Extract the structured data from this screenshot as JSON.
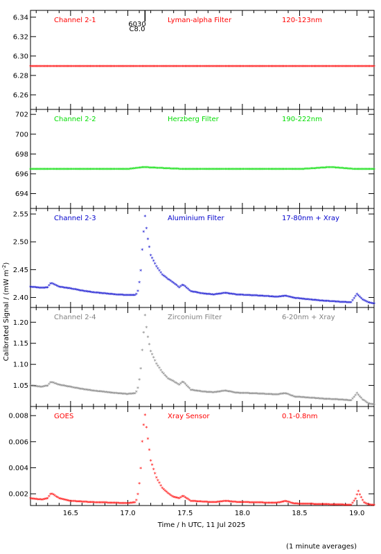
{
  "figure": {
    "ylabel": "Calibrated Signal / (mW m",
    "ylabel_sup": "-2",
    "ylabel_end": ")",
    "xlabel": "Time / h UTC, 11 Jul 2025",
    "footnote": "(1 minute averages)",
    "marker_label_top": "6030",
    "marker_label_bottom": "C8.0"
  },
  "chart_data": [
    {
      "type": "scatter",
      "channel": "Channel 2-1",
      "filter": "Lyman-alpha Filter",
      "band": "120-123nm",
      "color": "#ff0000",
      "xlim": [
        16.15,
        19.15
      ],
      "ylim": [
        6.245,
        6.347
      ],
      "yticks": [
        "6.26",
        "6.28",
        "6.30",
        "6.32",
        "6.34"
      ],
      "x": [
        16.15,
        16.5,
        17.0,
        17.5,
        18.0,
        18.5,
        19.0,
        19.15
      ],
      "y": [
        6.289,
        6.289,
        6.289,
        6.289,
        6.289,
        6.289,
        6.289,
        6.289
      ]
    },
    {
      "type": "scatter",
      "channel": "Channel 2-2",
      "filter": "Herzberg Filter",
      "band": "190-222nm",
      "color": "#00dd00",
      "xlim": [
        16.15,
        19.15
      ],
      "ylim": [
        692.5,
        702.5
      ],
      "yticks": [
        "694",
        "696",
        "698",
        "700",
        "702"
      ],
      "x": [
        16.15,
        16.5,
        17.0,
        17.13,
        17.5,
        18.0,
        18.5,
        18.77,
        19.0,
        19.15
      ],
      "y": [
        696.4,
        696.4,
        696.4,
        696.6,
        696.4,
        696.4,
        696.4,
        696.6,
        696.4,
        696.4
      ]
    },
    {
      "type": "scatter",
      "channel": "Channel 2-3",
      "filter": "Aluminium Filter",
      "band": "17-80nm + Xray",
      "color": "#0000cc",
      "xlim": [
        16.15,
        19.15
      ],
      "ylim": [
        2.382,
        2.56
      ],
      "yticks": [
        "2.40",
        "2.45",
        "2.50",
        "2.55"
      ],
      "x": [
        16.15,
        16.25,
        16.3,
        16.33,
        16.4,
        16.5,
        16.6,
        16.7,
        16.8,
        16.9,
        17.0,
        17.07,
        17.09,
        17.11,
        17.13,
        17.15,
        17.17,
        17.2,
        17.25,
        17.3,
        17.35,
        17.4,
        17.45,
        17.48,
        17.55,
        17.65,
        17.75,
        17.85,
        17.95,
        18.05,
        18.15,
        18.3,
        18.38,
        18.45,
        18.55,
        18.7,
        18.85,
        18.95,
        19.0,
        19.05,
        19.1,
        19.15
      ],
      "y": [
        2.418,
        2.416,
        2.417,
        2.425,
        2.418,
        2.415,
        2.411,
        2.408,
        2.406,
        2.404,
        2.403,
        2.403,
        2.412,
        2.44,
        2.5,
        2.545,
        2.51,
        2.475,
        2.455,
        2.44,
        2.432,
        2.425,
        2.417,
        2.422,
        2.41,
        2.406,
        2.404,
        2.407,
        2.404,
        2.403,
        2.402,
        2.4,
        2.402,
        2.398,
        2.396,
        2.393,
        2.391,
        2.39,
        2.405,
        2.395,
        2.39,
        2.388
      ]
    },
    {
      "type": "scatter",
      "channel": "Channel 2-4",
      "filter": "Zirconium Filter",
      "band": "6-20nm + Xray",
      "color": "#808080",
      "xlim": [
        16.15,
        19.15
      ],
      "ylim": [
        1.0,
        1.235
      ],
      "yticks": [
        "1.05",
        "1.10",
        "1.15",
        "1.20"
      ],
      "x": [
        16.15,
        16.25,
        16.3,
        16.33,
        16.4,
        16.5,
        16.6,
        16.7,
        16.8,
        16.9,
        17.0,
        17.07,
        17.09,
        17.11,
        17.13,
        17.15,
        17.17,
        17.2,
        17.25,
        17.3,
        17.35,
        17.4,
        17.45,
        17.48,
        17.55,
        17.65,
        17.75,
        17.85,
        17.95,
        18.05,
        18.15,
        18.3,
        18.38,
        18.45,
        18.55,
        18.7,
        18.85,
        18.95,
        19.0,
        19.05,
        19.1,
        19.15
      ],
      "y": [
        1.048,
        1.045,
        1.048,
        1.057,
        1.05,
        1.045,
        1.04,
        1.036,
        1.033,
        1.03,
        1.028,
        1.03,
        1.045,
        1.08,
        1.15,
        1.215,
        1.17,
        1.13,
        1.1,
        1.08,
        1.065,
        1.058,
        1.05,
        1.058,
        1.038,
        1.034,
        1.032,
        1.036,
        1.031,
        1.03,
        1.029,
        1.027,
        1.03,
        1.022,
        1.02,
        1.017,
        1.015,
        1.013,
        1.03,
        1.015,
        1.006,
        1.003
      ]
    },
    {
      "type": "scatter",
      "channel": "GOES",
      "filter": "Xray Sensor",
      "band": "0.1-0.8nm",
      "color": "#ff0000",
      "xlim": [
        16.15,
        19.15
      ],
      "ylim": [
        0.0011,
        0.0087
      ],
      "yticks": [
        "0.002",
        "0.004",
        "0.006",
        "0.008"
      ],
      "x": [
        16.15,
        16.25,
        16.3,
        16.33,
        16.4,
        16.5,
        16.6,
        16.7,
        16.8,
        16.9,
        17.0,
        17.07,
        17.09,
        17.11,
        17.13,
        17.15,
        17.17,
        17.2,
        17.25,
        17.3,
        17.35,
        17.4,
        17.45,
        17.48,
        17.55,
        17.65,
        17.75,
        17.85,
        17.95,
        18.05,
        18.15,
        18.3,
        18.38,
        18.45,
        18.55,
        18.7,
        18.85,
        18.95,
        18.99,
        19.01,
        19.03,
        19.06,
        19.1,
        19.15
      ],
      "y": [
        0.0016,
        0.0015,
        0.0016,
        0.002,
        0.0016,
        0.0014,
        0.00135,
        0.0013,
        0.00128,
        0.00125,
        0.00122,
        0.0013,
        0.002,
        0.0035,
        0.0068,
        0.008,
        0.0065,
        0.0045,
        0.0032,
        0.0024,
        0.002,
        0.0017,
        0.0016,
        0.0018,
        0.0014,
        0.00135,
        0.0013,
        0.0014,
        0.00132,
        0.0013,
        0.00128,
        0.00125,
        0.0014,
        0.0012,
        0.00118,
        0.00115,
        0.00112,
        0.0011,
        0.0016,
        0.0022,
        0.0018,
        0.0013,
        0.00112,
        0.0011
      ]
    }
  ],
  "xaxis": {
    "ticks": [
      16.5,
      17.0,
      17.5,
      18.0,
      18.5,
      19.0
    ],
    "tick_labels": [
      "16.5",
      "17.0",
      "17.5",
      "18.0",
      "18.5",
      "19.0"
    ],
    "marker_time": 17.15
  }
}
